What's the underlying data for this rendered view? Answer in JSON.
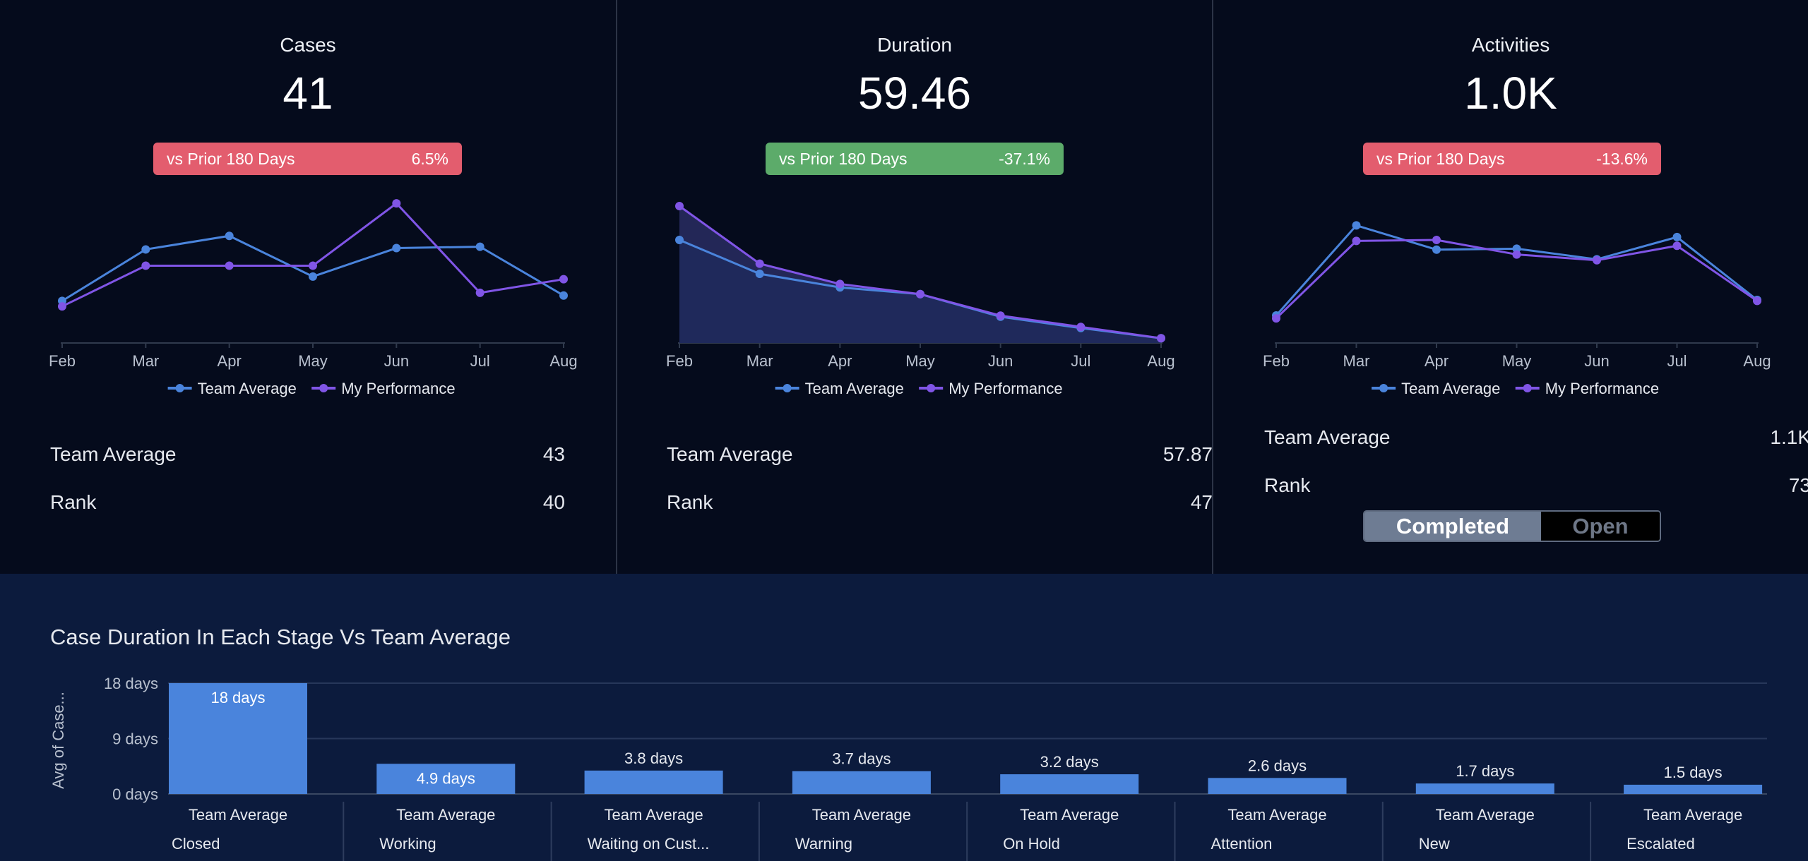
{
  "panels": [
    {
      "title": "Cases",
      "value": "41",
      "comparison": {
        "label": "vs Prior 180 Days",
        "change": "6.5%",
        "status": "negative",
        "color": "#e35d6e"
      },
      "stats": [
        {
          "label": "Team Average",
          "value": "43"
        },
        {
          "label": "Rank",
          "value": "40"
        }
      ]
    },
    {
      "title": "Duration",
      "value": "59.46",
      "comparison": {
        "label": "vs Prior 180 Days",
        "change": "-37.1%",
        "status": "positive",
        "color": "#5cab6a"
      },
      "stats": [
        {
          "label": "Team Average",
          "value": "57.87"
        },
        {
          "label": "Rank",
          "value": "47"
        }
      ]
    },
    {
      "title": "Activities",
      "value": "1.0K",
      "comparison": {
        "label": "vs Prior 180 Days",
        "change": "-13.6%",
        "status": "negative",
        "color": "#e35d6e"
      },
      "stats": [
        {
          "label": "Team Average",
          "value": "1.1K"
        },
        {
          "label": "Rank",
          "value": "73"
        }
      ],
      "toggle": {
        "options": [
          "Completed",
          "Open"
        ],
        "selected": "Completed"
      }
    }
  ],
  "colors": {
    "team_average": "#4a84dc",
    "my_performance": "#8055e6",
    "bar": "#4a84dc"
  },
  "bottom": {
    "title": "Case Duration In Each Stage Vs Team Average"
  },
  "chart_data": [
    {
      "type": "line",
      "x": [
        "Feb",
        "Mar",
        "Apr",
        "May",
        "Jun",
        "Jul",
        "Aug"
      ],
      "legend": "bottom",
      "ylim": [
        0,
        50
      ],
      "series": [
        {
          "name": "Team Average",
          "values": [
            15,
            34,
            39,
            24,
            34.5,
            35,
            17
          ]
        },
        {
          "name": "My Performance",
          "values": [
            13,
            28,
            28,
            28,
            51,
            18,
            23
          ]
        }
      ]
    },
    {
      "type": "area",
      "x": [
        "Feb",
        "Mar",
        "Apr",
        "May",
        "Jun",
        "Jul",
        "Aug"
      ],
      "legend": "bottom",
      "ylim": [
        0,
        60
      ],
      "series": [
        {
          "name": "Team Average",
          "values": [
            45,
            30,
            24,
            21,
            11,
            6,
            1.5
          ]
        },
        {
          "name": "My Performance",
          "values": [
            60,
            34.5,
            25.5,
            21,
            11.5,
            6.5,
            1.5
          ]
        }
      ]
    },
    {
      "type": "line",
      "x": [
        "Feb",
        "Mar",
        "Apr",
        "May",
        "Jun",
        "Jul",
        "Aug"
      ],
      "legend": "bottom",
      "ylim": [
        0,
        1400
      ],
      "series": [
        {
          "name": "Team Average",
          "values": [
            270,
            1200,
            950,
            960,
            850,
            1080,
            430
          ]
        },
        {
          "name": "My Performance",
          "values": [
            240,
            1040,
            1050,
            900,
            840,
            990,
            420
          ]
        }
      ]
    },
    {
      "type": "bar",
      "title": "Case Duration In Each Stage Vs Team Average",
      "ylabel": "Avg of Case...",
      "yticks": [
        "18 days",
        "9 days",
        "0 days"
      ],
      "ylim": [
        0,
        18
      ],
      "grid": true,
      "categories": [
        "Closed",
        "Working",
        "Waiting on Cust...",
        "Warning",
        "On Hold",
        "Attention",
        "New",
        "Escalated"
      ],
      "group_label": "Team Average",
      "values": [
        18,
        4.9,
        3.8,
        3.7,
        3.2,
        2.6,
        1.7,
        1.5
      ],
      "value_labels": [
        "18 days",
        "4.9 days",
        "3.8 days",
        "3.7 days",
        "3.2 days",
        "2.6 days",
        "1.7 days",
        "1.5 days"
      ]
    }
  ]
}
